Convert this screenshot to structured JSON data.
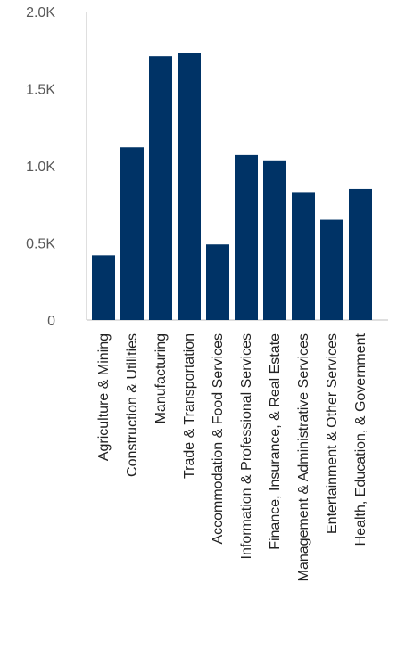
{
  "chart_data": {
    "type": "bar",
    "title": "",
    "xlabel": "",
    "ylabel": "",
    "ylim": [
      0,
      2000
    ],
    "y_ticks": [
      {
        "value": 0,
        "label": "0"
      },
      {
        "value": 500,
        "label": "0.5K"
      },
      {
        "value": 1000,
        "label": "1.0K"
      },
      {
        "value": 1500,
        "label": "1.5K"
      },
      {
        "value": 2000,
        "label": "2.0K"
      }
    ],
    "grid": false,
    "legend": "none",
    "bar_color": "#003366",
    "axis_color": "#bfbfbf",
    "categories": [
      "Agriculture & Mining",
      "Construction & Utilities",
      "Manufacturing",
      "Trade & Transportation",
      "Accommodation & Food Services",
      "Information & Professional Services",
      "Finance, Insurance, & Real Estate",
      "Management & Administrative Services",
      "Entertainment &  Other Services",
      "Health, Education, & Government"
    ],
    "values": [
      420,
      1120,
      1710,
      1730,
      490,
      1070,
      1030,
      830,
      650,
      850
    ]
  }
}
